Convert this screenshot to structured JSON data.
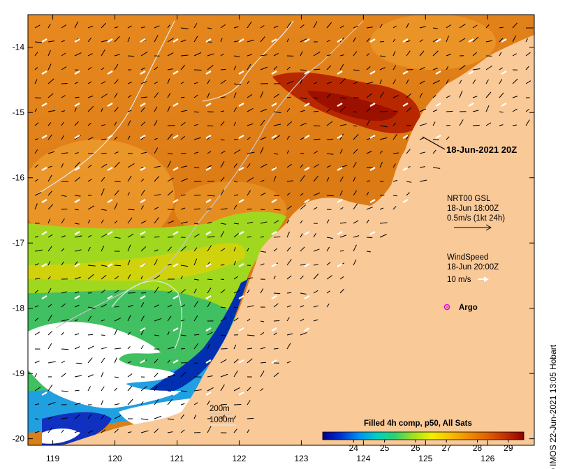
{
  "map": {
    "lon_ticks": [
      119,
      120,
      121,
      122,
      123,
      124,
      125,
      126
    ],
    "lat_ticks": [
      -14,
      -15,
      -16,
      -17,
      -18,
      -19,
      -20
    ],
    "lon_range": [
      118.6,
      126.75
    ],
    "lat_range": [
      -20.1,
      -13.5
    ],
    "colors": {
      "land": "#f9c998",
      "cloud": "#ffffff",
      "frame": "#000000"
    }
  },
  "labels": {
    "date_label": "18-Jun-2021 20Z",
    "gsl_title": "NRT00 GSL",
    "gsl_time": "18-Jun 18:00Z",
    "gsl_scale": "0.5m/s (1kt 24h)",
    "wind_title": "WindSpeed",
    "wind_time": "18-Jun 20:00Z",
    "wind_scale": "10 m/s",
    "argo": "Argo",
    "iso_200": "200m",
    "iso_1000": "1000m",
    "credit": "IMOS 22-Jun-2021 13:05 Hobart"
  },
  "colorbar": {
    "title": "Filled 4h comp, p50, All Sats",
    "ticks": [
      24,
      25,
      26,
      27,
      28,
      29
    ],
    "range": [
      23,
      29.5
    ],
    "colors": [
      "#00008b",
      "#0030d0",
      "#0090f0",
      "#00d0c0",
      "#30d070",
      "#a0e020",
      "#f0f000",
      "#f8c000",
      "#f09000",
      "#e06000",
      "#c03000",
      "#900000"
    ]
  }
}
